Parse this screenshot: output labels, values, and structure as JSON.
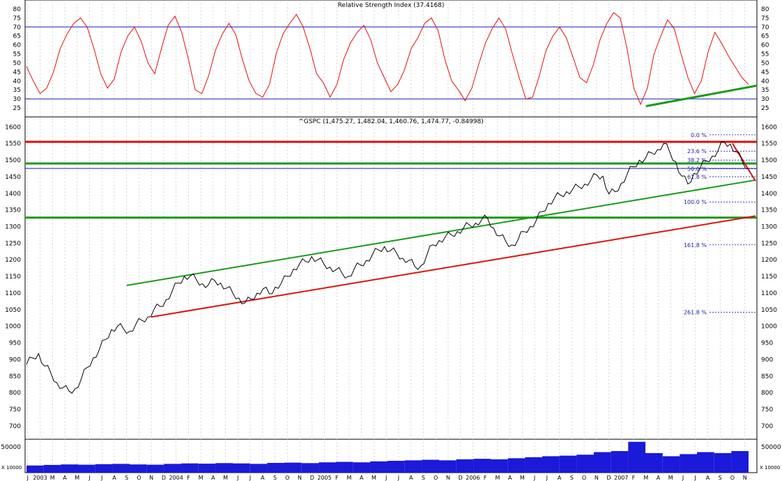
{
  "chart_data": [
    {
      "type": "line",
      "name": "rsi-panel",
      "title": "Relative Strength Index (37.4168)",
      "yticks": [
        25,
        30,
        35,
        40,
        45,
        50,
        55,
        60,
        65,
        70,
        75,
        80
      ],
      "ylim": [
        20,
        85
      ],
      "reference_lines": [
        70,
        30
      ],
      "series": [
        {
          "values": [
            48,
            40,
            33,
            36,
            45,
            58,
            66,
            72,
            75,
            70,
            58,
            44,
            36,
            41,
            56,
            65,
            70,
            62,
            50,
            44,
            58,
            71,
            76,
            67,
            52,
            35,
            33,
            43,
            57,
            66,
            72,
            66,
            52,
            40,
            33,
            31,
            38,
            55,
            66,
            72,
            77,
            70,
            58,
            44,
            39,
            31,
            38,
            52,
            61,
            67,
            71,
            63,
            50,
            42,
            34,
            38,
            46,
            58,
            64,
            72,
            75,
            68,
            52,
            40,
            35,
            29,
            36,
            49,
            61,
            69,
            75,
            69,
            55,
            42,
            30,
            31,
            43,
            57,
            65,
            70,
            64,
            53,
            42,
            39,
            49,
            63,
            72,
            78,
            75,
            58,
            36,
            27,
            36,
            55,
            65,
            74,
            69,
            55,
            42,
            33,
            40,
            56,
            67,
            61,
            54,
            48,
            42,
            38
          ],
          "color": "#e01010"
        }
      ],
      "trendline": {
        "color": "#1a9a1a",
        "from": {
          "x": "2007-03",
          "y": 26
        },
        "to": {
          "x": "2007-11",
          "y": 37.4
        }
      }
    },
    {
      "type": "line",
      "name": "price-panel",
      "title": "^GSPC (1,475.27, 1,482.04, 1,460.76, 1,474.77, -0.84998)",
      "yticks": [
        700,
        750,
        800,
        850,
        900,
        950,
        1000,
        1050,
        1100,
        1150,
        1200,
        1250,
        1300,
        1350,
        1400,
        1450,
        1500,
        1550,
        1600
      ],
      "ylim": [
        660,
        1630
      ],
      "series": [
        {
          "values": [
            885,
            905,
            918,
            880,
            860,
            830,
            815,
            805,
            812,
            840,
            876,
            905,
            930,
            960,
            990,
            1000,
            992,
            985,
            1005,
            1018,
            1028,
            1050,
            1060,
            1080,
            1105,
            1130,
            1150,
            1152,
            1140,
            1128,
            1125,
            1138,
            1130,
            1115,
            1100,
            1085,
            1070,
            1082,
            1100,
            1113,
            1098,
            1118,
            1130,
            1150,
            1172,
            1188,
            1195,
            1210,
            1200,
            1188,
            1178,
            1170,
            1160,
            1150,
            1172,
            1185,
            1198,
            1215,
            1230,
            1240,
            1228,
            1220,
            1205,
            1198,
            1180,
            1182,
            1215,
            1245,
            1258,
            1268,
            1275,
            1285,
            1295,
            1305,
            1310,
            1320,
            1325,
            1295,
            1272,
            1255,
            1245,
            1260,
            1285,
            1300,
            1318,
            1345,
            1370,
            1385,
            1395,
            1405,
            1412,
            1420,
            1428,
            1440,
            1455,
            1452,
            1398,
            1405,
            1430,
            1458,
            1480,
            1500,
            1505,
            1522,
            1532,
            1550,
            1525,
            1495,
            1452,
            1428,
            1460,
            1475,
            1498,
            1512,
            1530,
            1555,
            1548,
            1525,
            1495,
            1475
          ],
          "color": "#000000"
        }
      ],
      "hlines": [
        {
          "y": 1555,
          "color": "#e01010"
        },
        {
          "y": 1490,
          "color": "#1a9a1a"
        },
        {
          "y": 1475,
          "color": "#1a1aa8"
        },
        {
          "y": 1327,
          "color": "#1a9a1a"
        }
      ],
      "trendlines": [
        {
          "color": "#1a9a1a",
          "from": {
            "x": "2003-09",
            "y": 1123
          },
          "to": {
            "x": "2007-11",
            "y": 1440
          }
        },
        {
          "color": "#e01010",
          "from": {
            "x": "2003-11",
            "y": 1028
          },
          "to": {
            "x": "2007-11",
            "y": 1332
          }
        },
        {
          "color": "#e01010",
          "from": {
            "x": "2007-10",
            "y": 1550
          },
          "to": {
            "x": "2007-11",
            "y": 1437
          }
        }
      ],
      "fibonacci": {
        "levels": [
          {
            "label": "0.0 %",
            "value": 1576
          },
          {
            "label": "23.6 %",
            "value": 1527
          },
          {
            "label": "38.2 %",
            "value": 1500
          },
          {
            "label": "50.0 %",
            "value": 1474
          },
          {
            "label": "61.8 %",
            "value": 1450
          },
          {
            "label": "100.0 %",
            "value": 1374
          },
          {
            "label": "161.8 %",
            "value": 1245
          },
          {
            "label": "261.8 %",
            "value": 1042
          }
        ]
      }
    },
    {
      "type": "bar",
      "name": "volume-panel",
      "yticks": [
        50000
      ],
      "ylim": [
        0,
        65000
      ],
      "unit_label": "X 10000",
      "series": [
        {
          "values": [
            14000,
            15000,
            16000,
            15500,
            16500,
            17000,
            16000,
            15500,
            17000,
            18000,
            17500,
            18500,
            18000,
            17000,
            19000,
            19500,
            18500,
            20000,
            21000,
            20000,
            22000,
            23000,
            24000,
            25000,
            24000,
            26000,
            27000,
            26000,
            28000,
            30000,
            32000,
            33000,
            35000,
            40000,
            42000,
            60000,
            38000,
            32000,
            36000,
            40000,
            38000,
            42000
          ],
          "color": "#1a1ad8"
        }
      ]
    }
  ],
  "x_axis_labels": [
    {
      "text": "J",
      "x": "2003-01"
    },
    {
      "text": "2003",
      "x": "2003-02"
    },
    {
      "text": "M",
      "x": "2003-03"
    },
    {
      "text": "A",
      "x": "2003-04"
    },
    {
      "text": "M",
      "x": "2003-05"
    },
    {
      "text": "J",
      "x": "2003-06"
    },
    {
      "text": "J",
      "x": "2003-07"
    },
    {
      "text": "A",
      "x": "2003-08"
    },
    {
      "text": "S",
      "x": "2003-09"
    },
    {
      "text": "O",
      "x": "2003-10"
    },
    {
      "text": "N",
      "x": "2003-11"
    },
    {
      "text": "D",
      "x": "2003-12"
    },
    {
      "text": "2004",
      "x": "2004-01"
    },
    {
      "text": "F",
      "x": "2004-02"
    },
    {
      "text": "M",
      "x": "2004-03"
    },
    {
      "text": "A",
      "x": "2004-04"
    },
    {
      "text": "M",
      "x": "2004-05"
    },
    {
      "text": "J",
      "x": "2004-06"
    },
    {
      "text": "J",
      "x": "2004-07"
    },
    {
      "text": "A",
      "x": "2004-08"
    },
    {
      "text": "S",
      "x": "2004-09"
    },
    {
      "text": "O",
      "x": "2004-10"
    },
    {
      "text": "N",
      "x": "2004-11"
    },
    {
      "text": "D",
      "x": "2004-12"
    },
    {
      "text": "2005",
      "x": "2005-01"
    },
    {
      "text": "F",
      "x": "2005-02"
    },
    {
      "text": "M",
      "x": "2005-03"
    },
    {
      "text": "A",
      "x": "2005-04"
    },
    {
      "text": "M",
      "x": "2005-05"
    },
    {
      "text": "J",
      "x": "2005-06"
    },
    {
      "text": "J",
      "x": "2005-07"
    },
    {
      "text": "A",
      "x": "2005-08"
    },
    {
      "text": "S",
      "x": "2005-09"
    },
    {
      "text": "O",
      "x": "2005-10"
    },
    {
      "text": "N",
      "x": "2005-11"
    },
    {
      "text": "D",
      "x": "2005-12"
    },
    {
      "text": "2006",
      "x": "2006-01"
    },
    {
      "text": "F",
      "x": "2006-02"
    },
    {
      "text": "M",
      "x": "2006-03"
    },
    {
      "text": "A",
      "x": "2006-04"
    },
    {
      "text": "M",
      "x": "2006-05"
    },
    {
      "text": "J",
      "x": "2006-06"
    },
    {
      "text": "J",
      "x": "2006-07"
    },
    {
      "text": "A",
      "x": "2006-08"
    },
    {
      "text": "S",
      "x": "2006-09"
    },
    {
      "text": "O",
      "x": "2006-10"
    },
    {
      "text": "N",
      "x": "2006-11"
    },
    {
      "text": "D",
      "x": "2006-12"
    },
    {
      "text": "2007",
      "x": "2007-01"
    },
    {
      "text": "F",
      "x": "2007-02"
    },
    {
      "text": "M",
      "x": "2007-03"
    },
    {
      "text": "A",
      "x": "2007-04"
    },
    {
      "text": "M",
      "x": "2007-05"
    },
    {
      "text": "J",
      "x": "2007-06"
    },
    {
      "text": "J",
      "x": "2007-07"
    },
    {
      "text": "A",
      "x": "2007-08"
    },
    {
      "text": "S",
      "x": "2007-09"
    },
    {
      "text": "O",
      "x": "2007-10"
    },
    {
      "text": "N",
      "x": "2007-11"
    }
  ],
  "x_range": [
    "2003-01",
    "2007-11"
  ],
  "grid": true
}
